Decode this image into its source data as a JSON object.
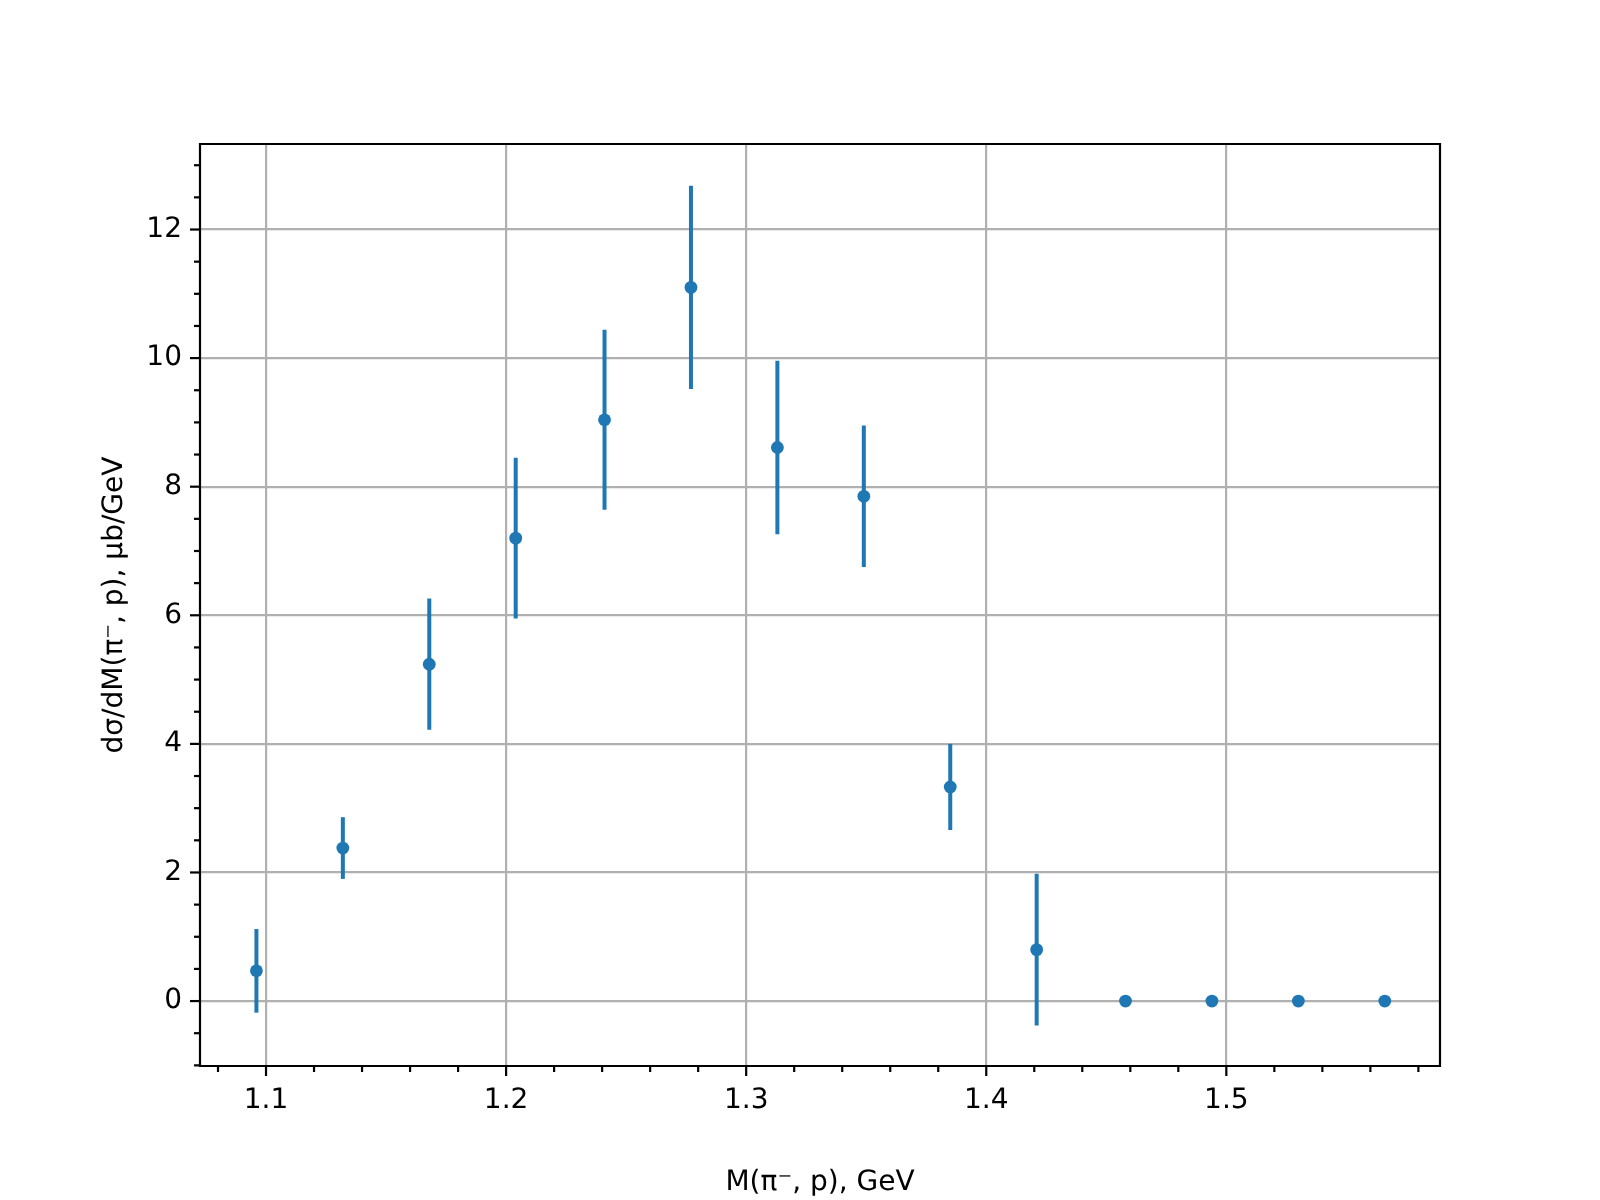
{
  "chart_data": {
    "type": "scatter",
    "xlabel": "M(π⁻, p), GeV",
    "ylabel": "dσ/dM(π⁻, p), μb/GeV",
    "x": [
      1.096,
      1.132,
      1.168,
      1.204,
      1.241,
      1.277,
      1.313,
      1.349,
      1.385,
      1.421,
      1.458,
      1.494,
      1.53,
      1.566
    ],
    "values": [
      0.47,
      2.38,
      5.24,
      7.2,
      9.04,
      11.1,
      8.61,
      7.85,
      3.33,
      0.8,
      0,
      0,
      0,
      0
    ],
    "errors": [
      0.65,
      0.48,
      1.02,
      1.25,
      1.4,
      1.58,
      1.35,
      1.1,
      0.67,
      1.18,
      null,
      null,
      null,
      null
    ],
    "color": "#1f77b4",
    "marker": "circle",
    "xlim": [
      1.0725,
      1.589
    ],
    "xticks": [
      {
        "value": 1.08,
        "label": null
      },
      1.1,
      {
        "value": 1.12,
        "label": null
      },
      {
        "value": 1.14,
        "label": null
      },
      {
        "value": 1.16,
        "label": null
      },
      {
        "value": 1.18,
        "label": null
      },
      1.2,
      {
        "value": 1.22,
        "label": null
      },
      {
        "value": 1.24,
        "label": null
      },
      {
        "value": 1.26,
        "label": null
      },
      {
        "value": 1.28,
        "label": null
      },
      1.3,
      {
        "value": 1.32,
        "label": null
      },
      {
        "value": 1.34,
        "label": null
      },
      {
        "value": 1.36,
        "label": null
      },
      {
        "value": 1.38,
        "label": null
      },
      1.4,
      {
        "value": 1.42,
        "label": null
      },
      {
        "value": 1.44,
        "label": null
      },
      {
        "value": 1.46,
        "label": null
      },
      {
        "value": 1.48,
        "label": null
      },
      1.5,
      {
        "value": 1.52,
        "label": null
      },
      {
        "value": 1.54,
        "label": null
      },
      {
        "value": 1.56,
        "label": null
      },
      {
        "value": 1.58,
        "label": null
      }
    ],
    "ylim": [
      -1.01,
      13.33
    ],
    "yticks": [
      {
        "value": -1,
        "label": null
      },
      {
        "value": -0.5,
        "label": null
      },
      0,
      {
        "value": 0.5,
        "label": null
      },
      {
        "value": 1,
        "label": null
      },
      {
        "value": 1.5,
        "label": null
      },
      2,
      {
        "value": 2.5,
        "label": null
      },
      {
        "value": 3,
        "label": null
      },
      {
        "value": 3.5,
        "label": null
      },
      4,
      {
        "value": 4.5,
        "label": null
      },
      {
        "value": 5,
        "label": null
      },
      {
        "value": 5.5,
        "label": null
      },
      6,
      {
        "value": 6.5,
        "label": null
      },
      {
        "value": 7,
        "label": null
      },
      {
        "value": 7.5,
        "label": null
      },
      8,
      {
        "value": 8.5,
        "label": null
      },
      {
        "value": 9,
        "label": null
      },
      {
        "value": 9.5,
        "label": null
      },
      10,
      {
        "value": 10.5,
        "label": null
      },
      {
        "value": 11,
        "label": null
      },
      {
        "value": 11.5,
        "label": null
      },
      12,
      {
        "value": 12.5,
        "label": null
      },
      {
        "value": 13,
        "label": null
      }
    ],
    "grid": true
  }
}
